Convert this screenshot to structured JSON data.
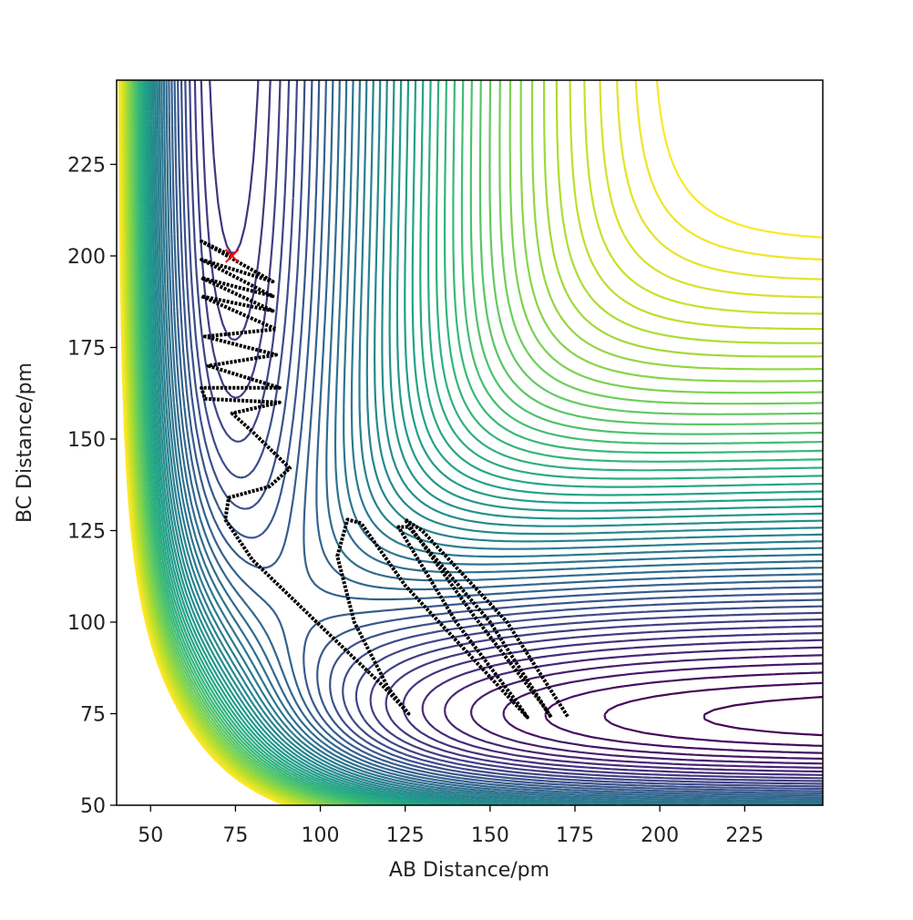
{
  "chart_data": {
    "type": "contour",
    "xlabel": "AB Distance/pm",
    "ylabel": "BC Distance/pm",
    "xlim": [
      40,
      248
    ],
    "ylim": [
      50,
      248
    ],
    "xticks": [
      50,
      75,
      100,
      125,
      150,
      175,
      200,
      225
    ],
    "yticks": [
      50,
      75,
      100,
      125,
      150,
      175,
      200,
      225
    ],
    "colormap": "viridis",
    "series": [
      {
        "type": "line",
        "color": "#000000",
        "x": [
          74,
          65,
          86,
          65,
          86,
          65,
          86,
          65,
          87,
          66,
          87,
          67,
          88,
          65,
          66,
          88,
          74,
          80,
          91,
          85,
          73,
          72,
          80,
          100,
          118,
          126,
          120,
          110,
          105,
          108,
          112,
          125,
          150,
          161,
          158,
          140,
          123,
          126,
          150,
          168,
          165,
          145,
          125,
          130,
          155,
          173
        ],
        "y": [
          200,
          204,
          193,
          199,
          189,
          194,
          185,
          189,
          180,
          178,
          173,
          170,
          164,
          164,
          161,
          160,
          157,
          152,
          142,
          137,
          134,
          128,
          117,
          99,
          83,
          75,
          82,
          100,
          118,
          128,
          127,
          110,
          85,
          74,
          78,
          100,
          126,
          126,
          100,
          74,
          78,
          102,
          128,
          125,
          100,
          74
        ]
      },
      {
        "type": "scatter",
        "marker": "x",
        "color": "#ff0000",
        "x": [
          74
        ],
        "y": [
          200
        ]
      }
    ]
  }
}
